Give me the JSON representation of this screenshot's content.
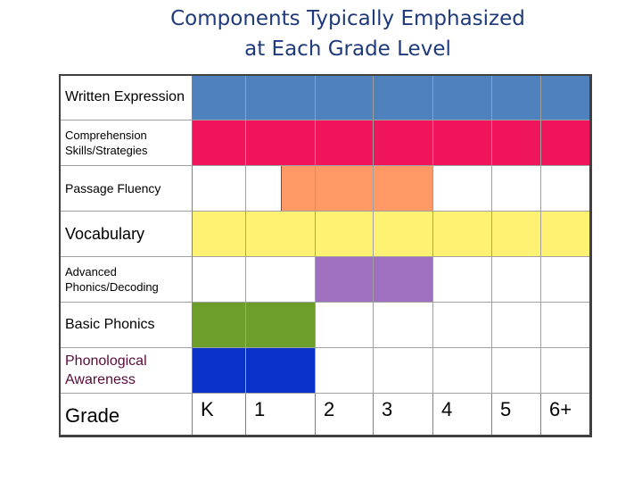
{
  "title_line1": "Components Typically Emphasized",
  "title_line2": "at Each Grade Level",
  "rows": [
    {
      "label": "Written Expression",
      "color": "#4f81bd",
      "filled": [
        1,
        1,
        1,
        1,
        1,
        1,
        1
      ]
    },
    {
      "label": "Comprehension Skills/Strategies",
      "color": "#f0145a",
      "filled": [
        1,
        1,
        1,
        1,
        1,
        1,
        1
      ]
    },
    {
      "label": "Passage Fluency",
      "color": "#ff9966",
      "filled": [
        0,
        0.5,
        1,
        1,
        0,
        0,
        0
      ]
    },
    {
      "label": "Vocabulary",
      "color": "#fff272",
      "filled": [
        1,
        1,
        1,
        1,
        1,
        1,
        1
      ]
    },
    {
      "label": "Advanced Phonics/Decoding",
      "color": "#a070c0",
      "filled": [
        0,
        0,
        1,
        1,
        0,
        0,
        0
      ]
    },
    {
      "label": "Basic Phonics",
      "color": "#6e9e2a",
      "filled": [
        1,
        1,
        0,
        0,
        0,
        0,
        0
      ]
    },
    {
      "label": "Phonological Awareness",
      "color": "#0a32c8",
      "filled": [
        1,
        1,
        0,
        0,
        0,
        0,
        0
      ]
    }
  ],
  "grade_label": "Grade",
  "grades": [
    "K",
    "1",
    "2",
    "3",
    "4",
    "5",
    "6+"
  ]
}
